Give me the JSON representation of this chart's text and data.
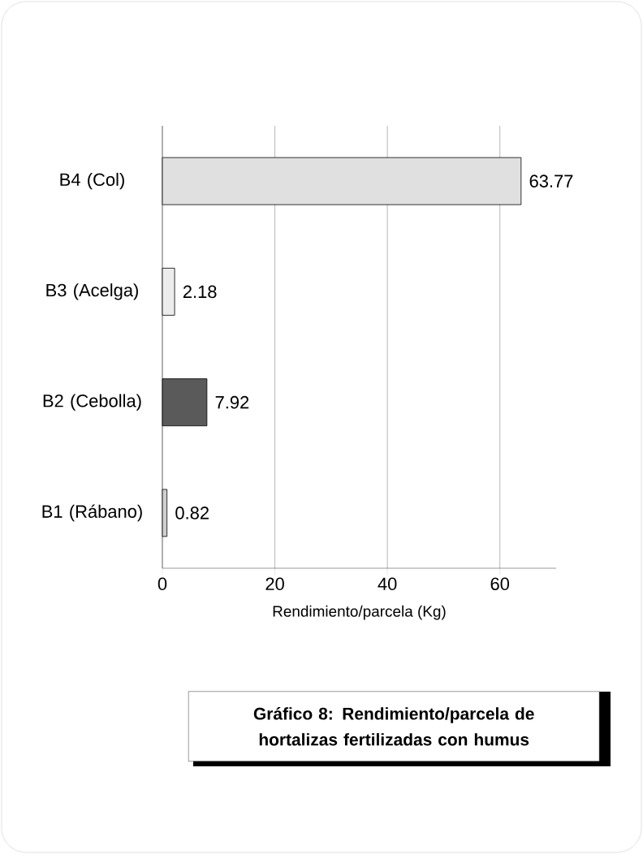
{
  "chart_data": {
    "type": "bar",
    "orientation": "horizontal",
    "title": "Gráfico 8: Rendimiento/parcela de hortalizas fertilizadas con humus",
    "xlabel": "Rendimiento/parcela  (Kg)",
    "categories": [
      "B4 (Col)",
      "B3 (Acelga)",
      "B2 (Cebolla)",
      "B1 (Rábano)"
    ],
    "values": [
      63.77,
      2.18,
      7.92,
      0.82
    ],
    "colors": [
      "#e0e0e0",
      "#ececec",
      "#5a5a5a",
      "#cfcfcf"
    ],
    "xlim": [
      0,
      70
    ],
    "xticks": [
      0,
      20,
      40,
      60
    ],
    "grid": "x",
    "data_labels": true
  }
}
